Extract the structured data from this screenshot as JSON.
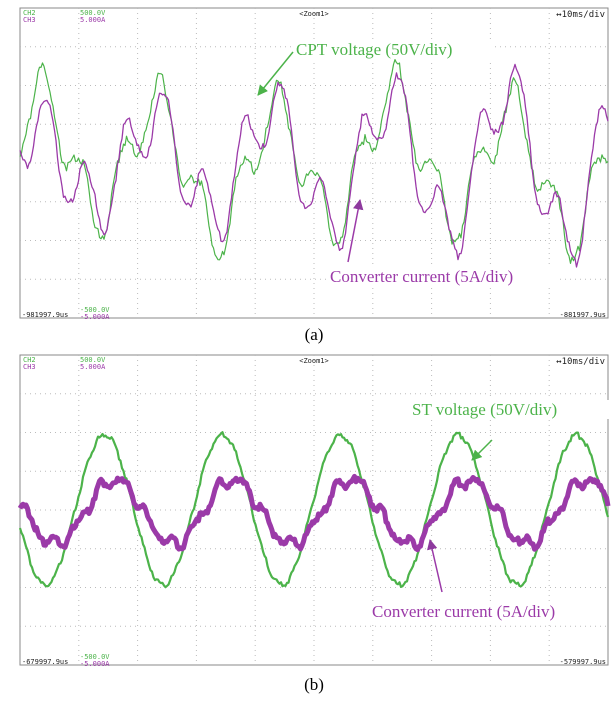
{
  "panels": [
    {
      "channels": [
        "CH2",
        "CH3"
      ],
      "top_scale": [
        "500.0V",
        "5.000A"
      ],
      "zoom": "<Zoom1>",
      "timebase": "↔10ms/div",
      "bottom_scale": [
        "-500.0V",
        "-5.000A"
      ],
      "time_start": "-981997.9us",
      "time_end": "-881997.9us",
      "voltage_label": "CPT voltage (50V/div)",
      "current_label": "Converter current (5A/div)",
      "caption": "(a)"
    },
    {
      "channels": [
        "CH2",
        "CH3"
      ],
      "top_scale": [
        "500.0V",
        "5.000A"
      ],
      "zoom": "<Zoom1>",
      "timebase": "↔10ms/div",
      "bottom_scale": [
        "-500.0V",
        "-5.000A"
      ],
      "time_start": "-679997.9us",
      "time_end": "-579997.9us",
      "voltage_label": "ST voltage (50V/div)",
      "current_label": "Converter current (5A/div)",
      "caption": "(b)"
    }
  ]
}
